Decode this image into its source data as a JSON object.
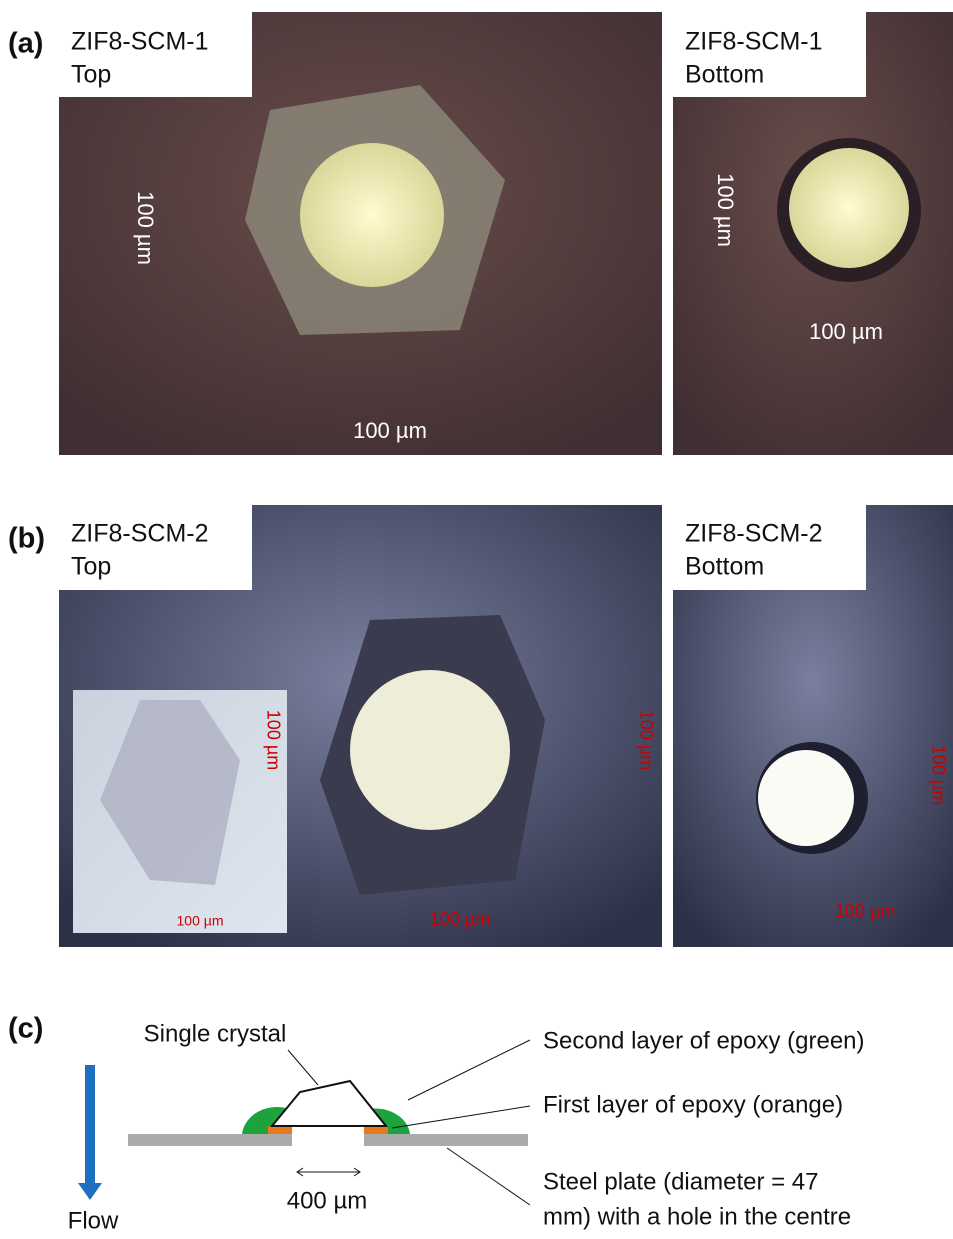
{
  "panel_a": {
    "label": "(a)",
    "left": {
      "title": "ZIF8-SCM-1",
      "side": "Top",
      "scale_vertical": "100 µm",
      "scale_horizontal": "100 µm"
    },
    "right": {
      "title": "ZIF8-SCM-1",
      "side": "Bottom",
      "scale_vertical": "100 µm",
      "scale_horizontal": "100 µm"
    }
  },
  "panel_b": {
    "label": "(b)",
    "left": {
      "title": "ZIF8-SCM-2",
      "side": "Top",
      "scale_vertical": "100 µm",
      "scale_horizontal": "100 µm",
      "inset_scale_vertical": "100 µm",
      "inset_scale_horizontal": "100 µm"
    },
    "right": {
      "title": "ZIF8-SCM-2",
      "side": "Bottom",
      "scale_vertical": "100 µm",
      "scale_horizontal": "100 µm"
    }
  },
  "panel_c": {
    "label": "(c)",
    "flow": "Flow",
    "crystal": "Single crystal",
    "gap": "400 µm",
    "second_layer": "Second layer of epoxy (green)",
    "first_layer": "First layer of epoxy (orange)",
    "plate": [
      "Steel plate (diameter = 47",
      "mm) with a hole in the centre"
    ]
  }
}
